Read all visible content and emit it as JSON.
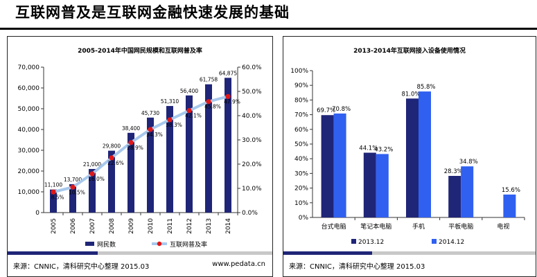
{
  "page": {
    "title": "互联网普及是互联网金融快速发展的基础"
  },
  "left_panel": {
    "source": "来源：CNNIC，清科研究中心整理 2015.03",
    "site": "www.pedata.cn"
  },
  "right_panel": {
    "source": "来源：CNNIC，清科研究中心整理 2015.03"
  },
  "colors": {
    "bar_dark": "#1f2577",
    "bar_blue": "#3060f0",
    "line": "#a8c8ec",
    "marker": "#e01818",
    "footer": "#1f2577"
  },
  "chart_data": [
    {
      "type": "bar",
      "title": "2005-2014年中国网民规模和互联网普及率",
      "categories": [
        "2005",
        "2006",
        "2007",
        "2008",
        "2009",
        "2010",
        "2011",
        "2012",
        "2013",
        "2014"
      ],
      "series": [
        {
          "name": "网民数",
          "type": "bar",
          "axis": "left",
          "values": [
            11100,
            13700,
            21000,
            29800,
            38400,
            45730,
            51310,
            56400,
            61758,
            64875
          ],
          "labels": [
            "11,100",
            "13,700",
            "21,000",
            "29,800",
            "38,400",
            "45,730",
            "51,310",
            "56,400",
            "61,758",
            "64,875"
          ]
        },
        {
          "name": "互联网普及率",
          "type": "line",
          "axis": "right",
          "values": [
            8.5,
            10.5,
            16.0,
            22.6,
            28.9,
            34.3,
            38.3,
            42.1,
            45.8,
            47.9
          ],
          "labels": [
            "8.5%",
            "10.5%",
            "16.0%",
            "22.6%",
            "28.9%",
            "34.3%",
            "38.3%",
            "42.1%",
            "45.8%",
            "47.9%"
          ]
        }
      ],
      "ylim": [
        0,
        70000
      ],
      "yticks": [
        "0",
        "10,000",
        "20,000",
        "30,000",
        "40,000",
        "50,000",
        "60,000",
        "70,000"
      ],
      "y2lim": [
        0,
        60
      ],
      "y2ticks": [
        "0.0%",
        "10.0%",
        "20.0%",
        "30.0%",
        "40.0%",
        "50.0%",
        "60.0%"
      ],
      "legend": "bottom"
    },
    {
      "type": "bar",
      "title": "2013-2014年互联网接入设备使用情况",
      "categories": [
        "台式电脑",
        "笔记本电脑",
        "手机",
        "平板电脑",
        "电视"
      ],
      "series": [
        {
          "name": "2013.12",
          "values": [
            69.7,
            44.1,
            81.0,
            28.3,
            null
          ],
          "labels": [
            "69.7%",
            "44.1%",
            "81.0%",
            "28.3%",
            ""
          ]
        },
        {
          "name": "2014.12",
          "values": [
            70.8,
            43.2,
            85.8,
            34.8,
            15.6
          ],
          "labels": [
            "70.8%",
            "43.2%",
            "85.8%",
            "34.8%",
            "15.6%"
          ]
        }
      ],
      "ylim": [
        0,
        100
      ],
      "yticks": [
        "0%",
        "10%",
        "20%",
        "30%",
        "40%",
        "50%",
        "60%",
        "70%",
        "80%",
        "90%",
        "100%"
      ],
      "legend": "bottom"
    }
  ]
}
